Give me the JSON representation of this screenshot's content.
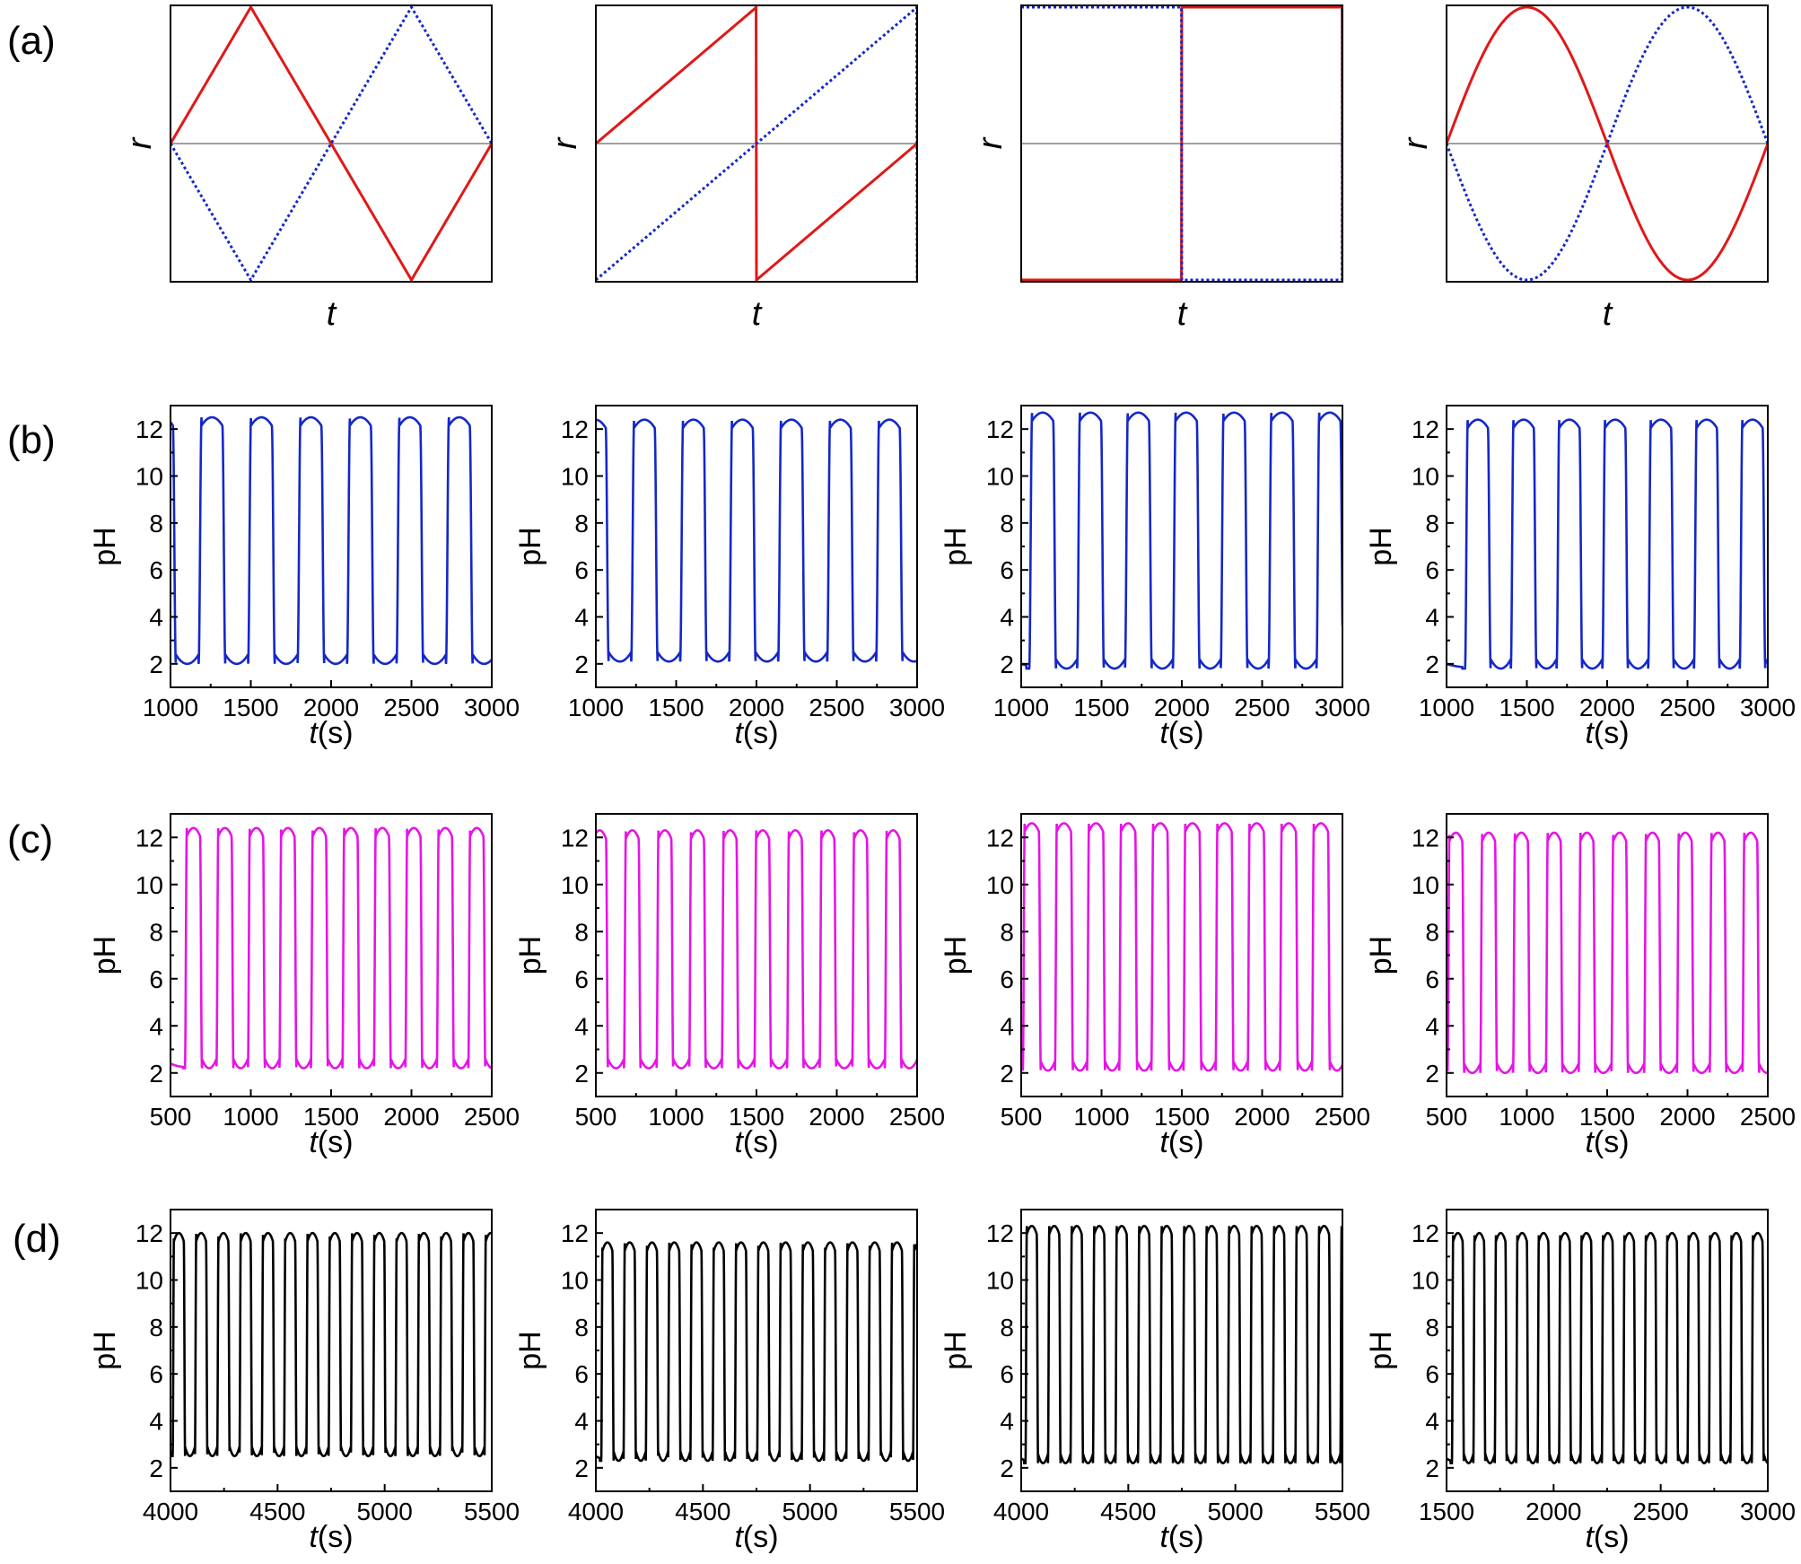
{
  "row_labels": [
    "(a)",
    "(b)",
    "(c)",
    "(d)"
  ],
  "colors": {
    "red": "#e01818",
    "blue": "#1428c8",
    "magenta": "#e614e6",
    "black": "#000000",
    "baseline": "#808080"
  },
  "chart_data": [
    {
      "id": "a1",
      "type": "line",
      "row": 0,
      "col": 0,
      "waveform": "triangle",
      "xlabel": "t",
      "ylabel": "r",
      "xticks": [],
      "yticks": [],
      "series": [
        {
          "color_key": "red",
          "style": "solid",
          "phase": 0
        },
        {
          "color_key": "blue",
          "style": "dotted",
          "phase": 0.5
        }
      ]
    },
    {
      "id": "a2",
      "type": "line",
      "row": 0,
      "col": 1,
      "waveform": "sawtooth",
      "xlabel": "t",
      "ylabel": "r",
      "xticks": [],
      "yticks": [],
      "series": [
        {
          "color_key": "red",
          "style": "solid",
          "phase": 0
        },
        {
          "color_key": "blue",
          "style": "dotted",
          "phase": 0.5
        }
      ]
    },
    {
      "id": "a3",
      "type": "line",
      "row": 0,
      "col": 2,
      "waveform": "square",
      "xlabel": "t",
      "ylabel": "r",
      "xticks": [],
      "yticks": [],
      "series": [
        {
          "color_key": "red",
          "style": "solid",
          "phase": 0
        },
        {
          "color_key": "blue",
          "style": "dotted",
          "phase": 0.5
        }
      ]
    },
    {
      "id": "a4",
      "type": "line",
      "row": 0,
      "col": 3,
      "waveform": "sine",
      "xlabel": "t",
      "ylabel": "r",
      "xticks": [],
      "yticks": [],
      "series": [
        {
          "color_key": "red",
          "style": "solid",
          "phase": 0
        },
        {
          "color_key": "blue",
          "style": "dotted",
          "phase": 0.5
        }
      ]
    },
    {
      "id": "b1",
      "type": "line",
      "row": 1,
      "col": 0,
      "xlabel": "t(s)",
      "ylabel": "pH",
      "xlim": [
        1000,
        3000
      ],
      "ylim": [
        1,
        13
      ],
      "xticks": [
        1000,
        1500,
        2000,
        2500,
        3000
      ],
      "yticks": [
        2,
        4,
        6,
        8,
        10,
        12
      ],
      "color_key": "blue",
      "osc": {
        "x0": 1000,
        "x1": 3000,
        "period": 308,
        "first_rise": 1175,
        "min": 2.0,
        "max": 12.5,
        "high_frac": 0.48,
        "start_high": true
      }
    },
    {
      "id": "b2",
      "type": "line",
      "row": 1,
      "col": 1,
      "xlabel": "t(s)",
      "ylabel": "pH",
      "xlim": [
        1000,
        3000
      ],
      "ylim": [
        1,
        13
      ],
      "xticks": [
        1000,
        1500,
        2000,
        2500,
        3000
      ],
      "yticks": [
        2,
        4,
        6,
        8,
        10,
        12
      ],
      "color_key": "blue",
      "osc": {
        "x0": 1000,
        "x1": 3000,
        "period": 305,
        "first_rise": 1220,
        "min": 2.1,
        "max": 12.4,
        "high_frac": 0.48,
        "start_high": true
      }
    },
    {
      "id": "b3",
      "type": "line",
      "row": 1,
      "col": 2,
      "xlabel": "t(s)",
      "ylabel": "pH",
      "xlim": [
        1000,
        3000
      ],
      "ylim": [
        1,
        13
      ],
      "xticks": [
        1000,
        1500,
        2000,
        2500,
        3000
      ],
      "yticks": [
        2,
        4,
        6,
        8,
        10,
        12
      ],
      "color_key": "blue",
      "osc": {
        "x0": 1000,
        "x1": 3000,
        "period": 298,
        "first_rise": 1050,
        "min": 1.8,
        "max": 12.7,
        "high_frac": 0.5,
        "start_high": false
      }
    },
    {
      "id": "b4",
      "type": "line",
      "row": 1,
      "col": 3,
      "xlabel": "t(s)",
      "ylabel": "pH",
      "xlim": [
        1000,
        3000
      ],
      "ylim": [
        1,
        13
      ],
      "xticks": [
        1000,
        1500,
        2000,
        2500,
        3000
      ],
      "yticks": [
        2,
        4,
        6,
        8,
        10,
        12
      ],
      "color_key": "blue",
      "osc": {
        "x0": 1000,
        "x1": 3000,
        "period": 285,
        "first_rise": 1115,
        "min": 1.8,
        "max": 12.4,
        "high_frac": 0.5,
        "start_high": false
      }
    },
    {
      "id": "c1",
      "type": "line",
      "row": 2,
      "col": 0,
      "xlabel": "t(s)",
      "ylabel": "pH",
      "xlim": [
        500,
        2500
      ],
      "ylim": [
        1,
        13
      ],
      "xticks": [
        500,
        1000,
        1500,
        2000,
        2500
      ],
      "yticks": [
        2,
        4,
        6,
        8,
        10,
        12
      ],
      "color_key": "magenta",
      "osc": {
        "x0": 500,
        "x1": 2500,
        "period": 196,
        "first_rise": 590,
        "min": 2.2,
        "max": 12.4,
        "high_frac": 0.48,
        "start_high": false
      }
    },
    {
      "id": "c2",
      "type": "line",
      "row": 2,
      "col": 1,
      "xlabel": "t(s)",
      "ylabel": "pH",
      "xlim": [
        500,
        2500
      ],
      "ylim": [
        1,
        13
      ],
      "xticks": [
        500,
        1000,
        1500,
        2000,
        2500
      ],
      "yticks": [
        2,
        4,
        6,
        8,
        10,
        12
      ],
      "color_key": "magenta",
      "osc": {
        "x0": 500,
        "x1": 2500,
        "period": 203,
        "first_rise": 675,
        "min": 2.2,
        "max": 12.3,
        "high_frac": 0.45,
        "start_high": true
      }
    },
    {
      "id": "c3",
      "type": "line",
      "row": 2,
      "col": 2,
      "xlabel": "t(s)",
      "ylabel": "pH",
      "xlim": [
        500,
        2500
      ],
      "ylim": [
        1,
        13
      ],
      "xticks": [
        500,
        1000,
        1500,
        2000,
        2500
      ],
      "yticks": [
        2,
        4,
        6,
        8,
        10,
        12
      ],
      "color_key": "magenta",
      "osc": {
        "x0": 500,
        "x1": 2500,
        "period": 200,
        "first_rise": 710,
        "min": 2.1,
        "max": 12.6,
        "high_frac": 0.5,
        "start_high": true
      }
    },
    {
      "id": "c4",
      "type": "line",
      "row": 2,
      "col": 3,
      "xlabel": "t(s)",
      "ylabel": "pH",
      "xlim": [
        500,
        2500
      ],
      "ylim": [
        1,
        13
      ],
      "xticks": [
        500,
        1000,
        1500,
        2000,
        2500
      ],
      "yticks": [
        2,
        4,
        6,
        8,
        10,
        12
      ],
      "color_key": "magenta",
      "osc": {
        "x0": 500,
        "x1": 2500,
        "period": 204,
        "first_rise": 710,
        "min": 2.0,
        "max": 12.2,
        "high_frac": 0.45,
        "start_high": true
      }
    },
    {
      "id": "d1",
      "type": "line",
      "row": 3,
      "col": 0,
      "xlabel": "t(s)",
      "ylabel": "pH",
      "xlim": [
        4000,
        5500
      ],
      "ylim": [
        1,
        13
      ],
      "xticks": [
        4000,
        4500,
        5000,
        5500
      ],
      "yticks": [
        2,
        4,
        6,
        8,
        10,
        12
      ],
      "color_key": "black",
      "osc": {
        "x0": 4000,
        "x1": 5500,
        "period": 104,
        "first_rise": 4010,
        "min": 2.5,
        "max": 12.0,
        "high_frac": 0.5,
        "start_high": false
      }
    },
    {
      "id": "d2",
      "type": "line",
      "row": 3,
      "col": 1,
      "xlabel": "t(s)",
      "ylabel": "pH",
      "xlim": [
        4000,
        5500
      ],
      "ylim": [
        1,
        13
      ],
      "xticks": [
        4000,
        4500,
        5000,
        5500
      ],
      "yticks": [
        2,
        4,
        6,
        8,
        10,
        12
      ],
      "color_key": "black",
      "osc": {
        "x0": 4000,
        "x1": 5500,
        "period": 104,
        "first_rise": 4025,
        "min": 2.3,
        "max": 11.6,
        "high_frac": 0.5,
        "start_high": false
      }
    },
    {
      "id": "d3",
      "type": "line",
      "row": 3,
      "col": 2,
      "xlabel": "t(s)",
      "ylabel": "pH",
      "xlim": [
        4000,
        5500
      ],
      "ylim": [
        1,
        13
      ],
      "xticks": [
        4000,
        4500,
        5000,
        5500
      ],
      "yticks": [
        2,
        4,
        6,
        8,
        10,
        12
      ],
      "color_key": "black",
      "osc": {
        "x0": 4000,
        "x1": 5500,
        "period": 105,
        "first_rise": 4020,
        "min": 2.2,
        "max": 12.3,
        "high_frac": 0.5,
        "start_high": false
      }
    },
    {
      "id": "d4",
      "type": "line",
      "row": 3,
      "col": 3,
      "xlabel": "t(s)",
      "ylabel": "pH",
      "xlim": [
        1500,
        3000
      ],
      "ylim": [
        1,
        13
      ],
      "xticks": [
        1500,
        2000,
        2500,
        3000
      ],
      "yticks": [
        2,
        4,
        6,
        8,
        10,
        12
      ],
      "color_key": "black",
      "osc": {
        "x0": 1500,
        "x1": 3000,
        "period": 100,
        "first_rise": 1525,
        "min": 2.2,
        "max": 12.0,
        "high_frac": 0.5,
        "start_high": false
      }
    }
  ]
}
